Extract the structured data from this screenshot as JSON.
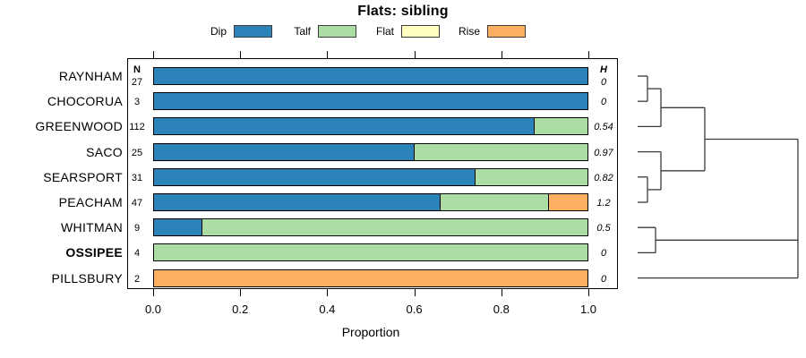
{
  "title": "Flats: sibling",
  "xlabel": "Proportion",
  "columns": {
    "n_header": "N",
    "h_header": "H"
  },
  "legend": [
    {
      "label": "Dip",
      "color": "#2b83ba"
    },
    {
      "label": "Talf",
      "color": "#abdda4"
    },
    {
      "label": "Flat",
      "color": "#ffffbf"
    },
    {
      "label": "Rise",
      "color": "#fdae61"
    }
  ],
  "chart_data": {
    "type": "bar",
    "variant": "horizontal-stacked-proportion",
    "title": "Flats: sibling",
    "xlabel": "Proportion",
    "xlim": [
      0.0,
      1.0
    ],
    "x_ticks": [
      0.0,
      0.2,
      0.4,
      0.6,
      0.8,
      1.0
    ],
    "categories": [
      "RAYNHAM",
      "CHOCORUA",
      "GREENWOOD",
      "SACO",
      "SEARSPORT",
      "PEACHAM",
      "WHITMAN",
      "OSSIPEE",
      "PILLSBURY"
    ],
    "bold_category_index": 7,
    "n_values": [
      "27",
      "3",
      "112",
      "25",
      "31",
      "47",
      "9",
      "4",
      "2"
    ],
    "h_values": [
      "0",
      "0",
      "0.54",
      "0.97",
      "0.82",
      "1.2",
      "0.5",
      "0",
      "0"
    ],
    "series": [
      {
        "name": "Dip",
        "color": "#2b83ba",
        "values": [
          1.0,
          1.0,
          0.875,
          0.6,
          0.74,
          0.66,
          0.11,
          0.0,
          0.0
        ]
      },
      {
        "name": "Talf",
        "color": "#abdda4",
        "values": [
          0.0,
          0.0,
          0.125,
          0.4,
          0.26,
          0.25,
          0.89,
          1.0,
          0.0
        ]
      },
      {
        "name": "Flat",
        "color": "#ffffbf",
        "values": [
          0.0,
          0.0,
          0.0,
          0.0,
          0.0,
          0.0,
          0.0,
          0.0,
          0.0
        ]
      },
      {
        "name": "Rise",
        "color": "#fdae61",
        "values": [
          0.0,
          0.0,
          0.0,
          0.0,
          0.0,
          0.09,
          0.0,
          0.0,
          1.0
        ]
      }
    ],
    "legend_position": "top",
    "grid": false,
    "side_panel": "dendrogram"
  },
  "dendrogram": {
    "line_color": "#3a3a3a",
    "segments": [
      [
        712,
        85.0,
        723,
        85.0
      ],
      [
        712,
        113.2,
        723,
        113.2
      ],
      [
        723,
        85.0,
        723,
        113.2
      ],
      [
        723,
        99.1,
        738,
        99.1
      ],
      [
        712,
        141.4,
        738,
        141.4
      ],
      [
        738,
        99.1,
        738,
        141.4
      ],
      [
        738,
        120.3,
        787,
        120.3
      ],
      [
        712,
        169.6,
        738,
        169.6
      ],
      [
        712,
        197.8,
        723,
        197.8
      ],
      [
        712,
        226.0,
        723,
        226.0
      ],
      [
        723,
        197.8,
        723,
        226.0
      ],
      [
        723,
        211.9,
        738,
        211.9
      ],
      [
        738,
        169.6,
        738,
        211.9
      ],
      [
        738,
        190.8,
        787,
        190.8
      ],
      [
        787,
        120.3,
        787,
        190.8
      ],
      [
        787,
        155.5,
        891,
        155.5
      ],
      [
        712,
        254.2,
        732,
        254.2
      ],
      [
        712,
        282.4,
        732,
        282.4
      ],
      [
        732,
        254.2,
        732,
        282.4
      ],
      [
        732,
        268.3,
        891,
        268.3
      ],
      [
        712,
        310.6,
        891,
        310.6
      ],
      [
        891,
        155.5,
        891,
        310.6
      ]
    ]
  }
}
